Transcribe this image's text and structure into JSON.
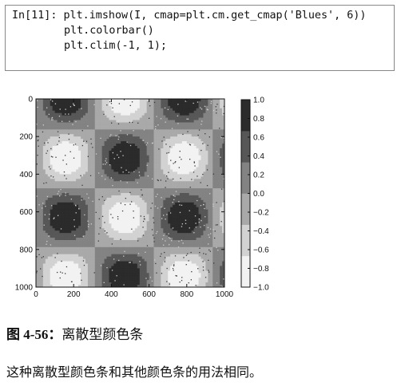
{
  "code_cell": {
    "prompt": "In[11]:",
    "lines": [
      "plt.imshow(I, cmap=plt.cm.get_cmap('Blues', 6))",
      "plt.colorbar()",
      "plt.clim(-1, 1);"
    ]
  },
  "chart_data": {
    "type": "heatmap",
    "title": "",
    "xlabel": "",
    "ylabel": "",
    "x_ticks": [
      "0",
      "200",
      "400",
      "600",
      "800",
      "1000"
    ],
    "y_ticks": [
      "0",
      "200",
      "400",
      "600",
      "800",
      "1000"
    ],
    "xlim": [
      0,
      1000
    ],
    "ylim": [
      1000,
      0
    ],
    "color_range": [
      -1,
      1
    ],
    "color_levels": 6,
    "colorbar_ticks": [
      "1.0",
      "0.8",
      "0.6",
      "0.4",
      "0.2",
      "0.0",
      "−0.2",
      "−0.4",
      "−0.6",
      "−0.8",
      "−1.0"
    ],
    "colorbar_placement": "right",
    "grid": false,
    "palette": [
      "#f2f2f2",
      "#d2d2d2",
      "#a9a9a9",
      "#838383",
      "#575757",
      "#2b2b2b"
    ]
  },
  "caption": {
    "figure_number": "图 4-56：",
    "text": "离散型颜色条"
  },
  "body_text": "这种离散型颜色条和其他颜色条的用法相同。"
}
